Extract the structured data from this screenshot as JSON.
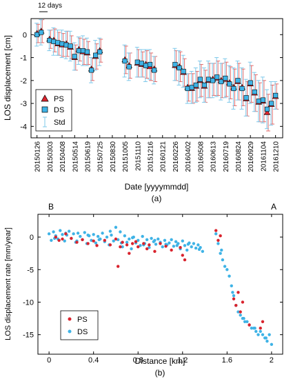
{
  "colors": {
    "ps": "#d9232d",
    "ds": "#3fb3e6",
    "std_ds": "#7ec8ea",
    "std_ps": "#e06a6a",
    "axis": "#000000"
  },
  "chart_data": [
    {
      "type": "scatter",
      "panel_label": "(a)",
      "xlabel": "Date [yyyymmdd]",
      "ylabel": "LOS displacement [cm]",
      "ylim": [
        -4.5,
        0.7
      ],
      "y_ticks": [
        0,
        -1,
        -2,
        -3,
        -4
      ],
      "x_tick_labels": [
        "20150126",
        "20150303",
        "20150408",
        "20150514",
        "20150619",
        "20150725",
        "20150830",
        "20151005",
        "20151110",
        "20151216",
        "20160121",
        "20160226",
        "20160402",
        "20160508",
        "20160613",
        "20160719",
        "20160824",
        "20160929",
        "20161104",
        "20161210"
      ],
      "interval_annotation": "12 days",
      "legend": {
        "position": "bottom-left",
        "entries": [
          "PS",
          "DS",
          "Std"
        ]
      },
      "series": [
        {
          "name": "DS",
          "marker": "square",
          "x": [
            "20150126",
            "20150207",
            "20150303",
            "20150315",
            "20150327",
            "20150408",
            "20150420",
            "20150502",
            "20150514",
            "20150526",
            "20150607",
            "20150619",
            "20150701",
            "20150713",
            "20150725",
            "20151005",
            "20151017",
            "20151110",
            "20151122",
            "20151204",
            "20151216",
            "20151228",
            "20160226",
            "20160309",
            "20160321",
            "20160402",
            "20160414",
            "20160426",
            "20160508",
            "20160520",
            "20160601",
            "20160613",
            "20160625",
            "20160707",
            "20160719",
            "20160731",
            "20160812",
            "20160824",
            "20160905",
            "20160917",
            "20160929",
            "20161011",
            "20161023",
            "20161104",
            "20161116",
            "20161128",
            "20161210"
          ],
          "y": [
            0.0,
            0.1,
            -0.25,
            -0.3,
            -0.35,
            -0.4,
            -0.45,
            -0.5,
            -0.95,
            -0.7,
            -0.7,
            -0.75,
            -1.55,
            -0.9,
            -0.75,
            -1.15,
            -1.4,
            -1.2,
            -1.25,
            -1.35,
            -1.3,
            -1.55,
            -1.3,
            -1.45,
            -1.6,
            -2.35,
            -2.3,
            -2.2,
            -1.95,
            -2.2,
            -1.95,
            -2.0,
            -1.85,
            -2.05,
            -1.9,
            -2.15,
            -2.35,
            -2.0,
            -2.35,
            -2.75,
            -2.1,
            -2.5,
            -2.9,
            -2.85,
            -3.25,
            -3.0,
            -2.65
          ],
          "std": [
            0.5,
            0.55,
            0.45,
            0.6,
            0.55,
            0.6,
            0.6,
            0.65,
            0.6,
            0.6,
            0.65,
            0.6,
            0.55,
            0.65,
            0.6,
            0.7,
            0.6,
            0.65,
            0.6,
            0.7,
            0.65,
            0.6,
            0.7,
            0.75,
            0.7,
            0.65,
            0.7,
            0.75,
            0.8,
            0.75,
            0.8,
            0.75,
            0.85,
            0.8,
            0.85,
            0.8,
            0.9,
            0.85,
            0.9,
            0.8,
            0.9,
            0.85,
            0.9,
            1.0,
            0.85,
            0.95,
            0.6
          ]
        },
        {
          "name": "PS",
          "marker": "triangle",
          "x": [
            "20150126",
            "20150207",
            "20150303",
            "20150315",
            "20150327",
            "20150408",
            "20150420",
            "20150502",
            "20150514",
            "20150526",
            "20150607",
            "20150619",
            "20150701",
            "20150713",
            "20150725",
            "20151005",
            "20151017",
            "20151110",
            "20151122",
            "20151204",
            "20151216",
            "20151228",
            "20160226",
            "20160309",
            "20160321",
            "20160402",
            "20160414",
            "20160426",
            "20160508",
            "20160520",
            "20160601",
            "20160613",
            "20160625",
            "20160707",
            "20160719",
            "20160731",
            "20160812",
            "20160824",
            "20160905",
            "20160917",
            "20160929",
            "20161011",
            "20161023",
            "20161104",
            "20161116",
            "20161128",
            "20161210"
          ],
          "y": [
            0.05,
            0.15,
            -0.2,
            -0.25,
            -0.4,
            -0.45,
            -0.4,
            -0.55,
            -1.0,
            -0.65,
            -0.75,
            -0.8,
            -1.5,
            -0.95,
            -0.7,
            -1.1,
            -1.35,
            -1.25,
            -1.3,
            -1.3,
            -1.4,
            -1.5,
            -1.35,
            -1.4,
            -1.65,
            -2.3,
            -2.35,
            -2.25,
            -2.0,
            -2.25,
            -2.0,
            -1.95,
            -1.9,
            -2.0,
            -1.95,
            -2.1,
            -2.3,
            -2.05,
            -2.3,
            -2.8,
            -2.15,
            -2.55,
            -2.95,
            -2.9,
            -3.4,
            -3.05,
            -2.7
          ],
          "std": [
            0.4,
            0.5,
            0.4,
            0.5,
            0.5,
            0.5,
            0.55,
            0.5,
            0.55,
            0.5,
            0.55,
            0.5,
            0.5,
            0.55,
            0.5,
            0.6,
            0.55,
            0.6,
            0.55,
            0.6,
            0.6,
            0.55,
            0.65,
            0.65,
            0.6,
            0.6,
            0.65,
            0.65,
            0.7,
            0.7,
            0.75,
            0.7,
            0.75,
            0.75,
            0.75,
            0.7,
            0.8,
            0.8,
            0.8,
            0.75,
            0.8,
            0.8,
            0.85,
            0.9,
            0.8,
            0.85,
            0.55
          ]
        }
      ]
    },
    {
      "type": "scatter",
      "panel_label": "(b)",
      "xlabel": "Distance  [km]",
      "ylabel": "LOS displacement rate [mm/year]",
      "xlim": [
        -0.1,
        2.1
      ],
      "ylim": [
        -18,
        3.5
      ],
      "x_ticks": [
        0,
        0.4,
        0.8,
        1.2,
        1.6,
        2
      ],
      "y_ticks": [
        0,
        -5,
        -10,
        -15
      ],
      "end_labels": {
        "left": "B",
        "right": "A"
      },
      "legend": {
        "position": "bottom-left",
        "entries": [
          "PS",
          "DS"
        ]
      },
      "series": [
        {
          "name": "DS",
          "x": [
            0.0,
            0.02,
            0.04,
            0.06,
            0.08,
            0.1,
            0.12,
            0.14,
            0.16,
            0.18,
            0.2,
            0.22,
            0.24,
            0.26,
            0.28,
            0.3,
            0.32,
            0.34,
            0.36,
            0.38,
            0.4,
            0.42,
            0.44,
            0.46,
            0.48,
            0.5,
            0.52,
            0.54,
            0.56,
            0.58,
            0.6,
            0.62,
            0.64,
            0.66,
            0.68,
            0.7,
            0.72,
            0.74,
            0.76,
            0.78,
            0.8,
            0.82,
            0.84,
            0.86,
            0.88,
            0.9,
            0.92,
            0.94,
            0.96,
            0.98,
            1.0,
            1.02,
            1.04,
            1.06,
            1.08,
            1.1,
            1.12,
            1.14,
            1.16,
            1.18,
            1.2,
            1.22,
            1.24,
            1.26,
            1.28,
            1.3,
            1.32,
            1.34,
            1.36,
            1.38,
            1.5,
            1.52,
            1.54,
            1.56,
            1.58,
            1.6,
            1.62,
            1.64,
            1.66,
            1.68,
            1.7,
            1.72,
            1.74,
            1.76,
            1.78,
            1.8,
            1.82,
            1.84,
            1.86,
            1.88,
            1.9,
            1.92,
            1.94,
            1.96,
            1.98,
            2.0,
            0.05,
            0.15,
            0.25,
            0.35,
            0.45,
            0.55,
            0.65,
            0.75,
            0.85,
            0.95,
            1.05,
            1.15,
            1.25,
            1.35,
            1.55,
            1.65,
            1.75,
            1.85,
            1.95
          ],
          "y": [
            0.5,
            -0.5,
            0.8,
            0.2,
            -0.3,
            1.0,
            0.4,
            -0.6,
            0.3,
            0.9,
            -0.2,
            0.5,
            -0.8,
            0.6,
            0.1,
            -0.4,
            0.7,
            -1.0,
            0.2,
            -0.5,
            0.4,
            -0.9,
            0.1,
            -0.3,
            0.6,
            -0.7,
            0.0,
            -1.2,
            0.3,
            -0.6,
            1.5,
            -0.4,
            0.8,
            -1.5,
            0.2,
            -0.8,
            -0.3,
            -1.8,
            0.0,
            -0.9,
            -0.5,
            -1.3,
            0.1,
            -1.0,
            -0.4,
            -1.6,
            -0.2,
            -0.7,
            -1.1,
            -0.3,
            -0.8,
            -1.5,
            -0.5,
            -1.2,
            -0.9,
            -0.4,
            -1.4,
            -0.7,
            -1.0,
            -1.8,
            -0.6,
            -1.3,
            -2.0,
            -0.9,
            -1.5,
            -1.0,
            -1.7,
            -1.2,
            -1.6,
            -2.2,
            0.5,
            -1.0,
            -2.5,
            -3.5,
            -4.5,
            -5.0,
            -6.0,
            -7.5,
            -9.0,
            -10.5,
            -11.5,
            -12.0,
            -12.5,
            -13.0,
            -13.0,
            -13.5,
            -14.0,
            -14.0,
            -14.5,
            -15.0,
            -14.5,
            -15.0,
            -15.5,
            -16.0,
            -15.0,
            -16.5,
            -0.2,
            0.6,
            -0.6,
            0.3,
            -0.4,
            0.9,
            -0.9,
            -0.1,
            -1.2,
            -0.5,
            -1.1,
            -1.3,
            -1.1,
            -1.9,
            -2.0,
            -8.5,
            -12.5,
            -14.0,
            -15.5
          ]
        },
        {
          "name": "PS",
          "x": [
            0.06,
            0.09,
            0.12,
            0.15,
            0.2,
            0.25,
            0.3,
            0.35,
            0.4,
            0.43,
            0.5,
            0.55,
            0.6,
            0.62,
            0.64,
            0.66,
            0.7,
            0.72,
            0.75,
            0.78,
            0.8,
            0.85,
            0.88,
            0.9,
            0.95,
            1.0,
            1.05,
            1.1,
            1.18,
            1.2,
            1.22,
            1.5,
            1.52,
            1.54,
            1.66,
            1.68,
            1.7,
            1.72,
            1.74,
            1.8,
            1.9,
            1.92
          ],
          "y": [
            0.0,
            -0.5,
            -0.3,
            0.5,
            -0.2,
            -0.8,
            -0.4,
            -1.0,
            -0.6,
            -1.3,
            -0.5,
            -1.2,
            -0.3,
            -4.5,
            -1.5,
            -0.8,
            -1.2,
            -2.5,
            -1.0,
            -0.7,
            -1.5,
            -1.0,
            -1.8,
            -1.2,
            -2.2,
            -1.0,
            -1.4,
            -2.0,
            -1.6,
            -2.8,
            -3.5,
            1.0,
            -0.5,
            0.2,
            -9.5,
            -10.5,
            -8.5,
            -11.5,
            -10.0,
            -13.5,
            -14.0,
            -13.0
          ]
        }
      ]
    }
  ]
}
